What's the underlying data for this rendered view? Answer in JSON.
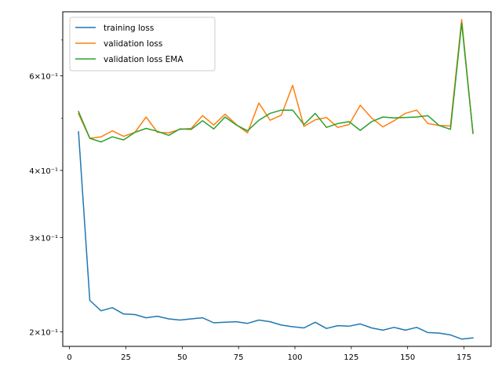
{
  "chart_data": {
    "type": "line",
    "title": "",
    "xlabel": "",
    "ylabel": "",
    "xlim": [
      -3,
      187
    ],
    "ylim": [
      0.188,
      0.79
    ],
    "yscale": "log",
    "grid": false,
    "legend_position": "top-left",
    "x_ticks": [
      0,
      25,
      50,
      75,
      100,
      125,
      150,
      175
    ],
    "y_ticks": [
      {
        "value": 0.2,
        "label": "2×10⁻¹"
      },
      {
        "value": 0.3,
        "label": "3×10⁻¹"
      },
      {
        "value": 0.4,
        "label": "4×10⁻¹"
      },
      {
        "value": 0.6,
        "label": "6×10⁻¹"
      }
    ],
    "x": [
      4,
      9,
      14,
      19,
      24,
      29,
      34,
      39,
      44,
      49,
      54,
      59,
      64,
      69,
      74,
      79,
      84,
      89,
      94,
      99,
      104,
      109,
      114,
      119,
      124,
      129,
      134,
      139,
      144,
      149,
      154,
      159,
      164,
      169,
      174,
      179
    ],
    "series": [
      {
        "name": "training loss",
        "color": "#1f77b4",
        "values": [
          0.472,
          0.229,
          0.219,
          0.222,
          0.216,
          0.2155,
          0.2125,
          0.214,
          0.2115,
          0.2105,
          0.2115,
          0.2125,
          0.208,
          0.2085,
          0.209,
          0.2075,
          0.2105,
          0.209,
          0.206,
          0.2045,
          0.2035,
          0.2085,
          0.203,
          0.2055,
          0.205,
          0.207,
          0.2035,
          0.2015,
          0.204,
          0.2015,
          0.204,
          0.1995,
          0.199,
          0.1975,
          0.194,
          0.195
        ]
      },
      {
        "name": "validation loss",
        "color": "#ff7f0e",
        "values": [
          0.51,
          0.459,
          0.462,
          0.474,
          0.463,
          0.471,
          0.503,
          0.471,
          0.47,
          0.477,
          0.479,
          0.506,
          0.486,
          0.509,
          0.487,
          0.47,
          0.534,
          0.496,
          0.507,
          0.576,
          0.483,
          0.497,
          0.502,
          0.481,
          0.487,
          0.529,
          0.501,
          0.482,
          0.495,
          0.511,
          0.518,
          0.489,
          0.485,
          0.484,
          0.764,
          0.469
        ]
      },
      {
        "name": "validation loss EMA",
        "color": "#2ca02c",
        "values": [
          0.515,
          0.459,
          0.452,
          0.462,
          0.456,
          0.471,
          0.479,
          0.473,
          0.465,
          0.478,
          0.477,
          0.495,
          0.478,
          0.503,
          0.486,
          0.474,
          0.496,
          0.511,
          0.518,
          0.518,
          0.487,
          0.511,
          0.481,
          0.489,
          0.493,
          0.475,
          0.493,
          0.503,
          0.501,
          0.502,
          0.503,
          0.506,
          0.485,
          0.477,
          0.753,
          0.469
        ]
      }
    ]
  }
}
